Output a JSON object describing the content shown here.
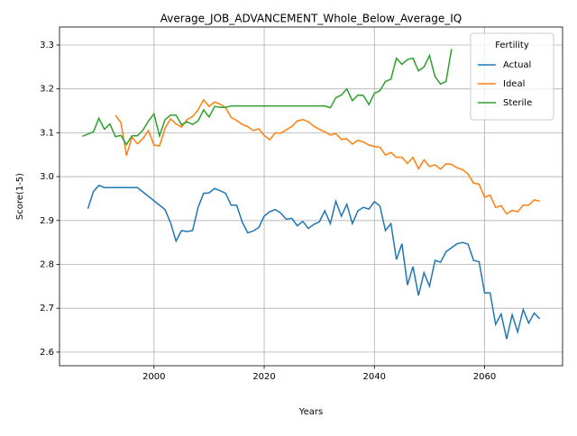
{
  "chart_data": {
    "type": "line",
    "title": "Average_JOB_ADVANCEMENT_Whole_Below_Average_IQ",
    "x_label": "Years",
    "y_label": "Score(1-5)",
    "x": [
      1987,
      1988,
      1989,
      1990,
      1991,
      1992,
      1993,
      1994,
      1995,
      1996,
      1997,
      1998,
      1999,
      2000,
      2001,
      2002,
      2003,
      2004,
      2005,
      2006,
      2007,
      2008,
      2009,
      2010,
      2011,
      2012,
      2013,
      2014,
      2015,
      2016,
      2017,
      2018,
      2019,
      2020,
      2021,
      2022,
      2023,
      2024,
      2025,
      2026,
      2027,
      2028,
      2029,
      2030,
      2031,
      2032,
      2033,
      2034,
      2035,
      2036,
      2037,
      2038,
      2039,
      2040,
      2041,
      2042,
      2043,
      2044,
      2045,
      2046,
      2047,
      2048,
      2049,
      2050,
      2051,
      2052,
      2053,
      2054,
      2055,
      2056,
      2057,
      2058,
      2059,
      2060,
      2061,
      2062,
      2063,
      2064,
      2065,
      2066,
      2067,
      2068,
      2069,
      2070
    ],
    "series": [
      {
        "name": "Actual",
        "color": "#1f77b4",
        "values": [
          null,
          2.927,
          2.966,
          2.98,
          2.975,
          2.975,
          2.975,
          2.975,
          2.975,
          2.975,
          2.975,
          2.965,
          2.955,
          2.945,
          2.935,
          2.925,
          2.895,
          2.853,
          2.877,
          2.875,
          2.877,
          2.93,
          2.962,
          2.963,
          2.973,
          2.968,
          2.962,
          2.935,
          2.935,
          2.897,
          2.872,
          2.876,
          2.884,
          2.91,
          2.92,
          2.925,
          2.917,
          2.903,
          2.905,
          2.888,
          2.898,
          2.882,
          2.891,
          2.897,
          2.922,
          2.893,
          2.944,
          2.91,
          2.937,
          2.893,
          2.922,
          2.93,
          2.926,
          2.943,
          2.933,
          2.877,
          2.893,
          2.811,
          2.847,
          2.753,
          2.795,
          2.729,
          2.781,
          2.75,
          2.809,
          2.805,
          2.829,
          2.838,
          2.847,
          2.85,
          2.846,
          2.809,
          2.806,
          2.735,
          2.735,
          2.663,
          2.687,
          2.63,
          2.685,
          2.646,
          2.697,
          2.666,
          2.689,
          2.676
        ]
      },
      {
        "name": "Ideal",
        "color": "#ff7f0e",
        "values": [
          null,
          null,
          null,
          null,
          null,
          null,
          3.14,
          3.123,
          3.048,
          3.09,
          3.075,
          3.087,
          3.105,
          3.072,
          3.07,
          3.11,
          3.132,
          3.12,
          3.113,
          3.13,
          3.137,
          3.152,
          3.175,
          3.16,
          3.17,
          3.165,
          3.157,
          3.135,
          3.128,
          3.119,
          3.114,
          3.105,
          3.109,
          3.094,
          3.084,
          3.1,
          3.099,
          3.107,
          3.114,
          3.127,
          3.13,
          3.125,
          3.115,
          3.108,
          3.102,
          3.095,
          3.098,
          3.085,
          3.086,
          3.074,
          3.083,
          3.079,
          3.072,
          3.069,
          3.067,
          3.049,
          3.055,
          3.044,
          3.044,
          3.03,
          3.044,
          3.018,
          3.038,
          3.023,
          3.027,
          3.017,
          3.029,
          3.028,
          3.02,
          3.016,
          3.006,
          2.985,
          2.983,
          2.953,
          2.958,
          2.93,
          2.934,
          2.915,
          2.923,
          2.92,
          2.935,
          2.935,
          2.947,
          2.944
        ]
      },
      {
        "name": "Sterile",
        "color": "#2ca02c",
        "values": [
          3.092,
          3.097,
          3.102,
          3.133,
          3.108,
          3.12,
          3.091,
          3.094,
          3.073,
          3.093,
          3.093,
          3.106,
          3.127,
          3.143,
          3.093,
          3.13,
          3.14,
          3.14,
          3.118,
          3.125,
          3.119,
          3.127,
          3.152,
          3.136,
          3.16,
          3.158,
          3.158,
          3.161,
          3.161,
          3.161,
          3.161,
          3.161,
          3.161,
          3.161,
          3.161,
          3.161,
          3.161,
          3.161,
          3.161,
          3.161,
          3.161,
          3.161,
          3.161,
          3.161,
          3.161,
          3.157,
          3.18,
          3.186,
          3.2,
          3.173,
          3.186,
          3.185,
          3.164,
          3.19,
          3.196,
          3.217,
          3.222,
          3.27,
          3.256,
          3.267,
          3.27,
          3.241,
          3.25,
          3.276,
          3.228,
          3.211,
          3.217,
          3.291,
          null,
          null,
          null,
          null,
          null,
          null,
          null,
          null,
          null,
          null,
          null,
          null,
          null,
          null,
          null,
          null
        ]
      }
    ],
    "xlim": [
      1982.85,
      2074.15
    ],
    "xticks": [
      2000,
      2020,
      2040,
      2060
    ],
    "ylim": [
      2.569,
      3.341
    ],
    "yticks": [
      2.6,
      2.7,
      2.8,
      2.9,
      {
        "value": 3,
        "label": "3.0"
      },
      3.1,
      3.2,
      3.3
    ],
    "grid": true,
    "legend_title": "Fertility",
    "legend_position": "upper right"
  }
}
